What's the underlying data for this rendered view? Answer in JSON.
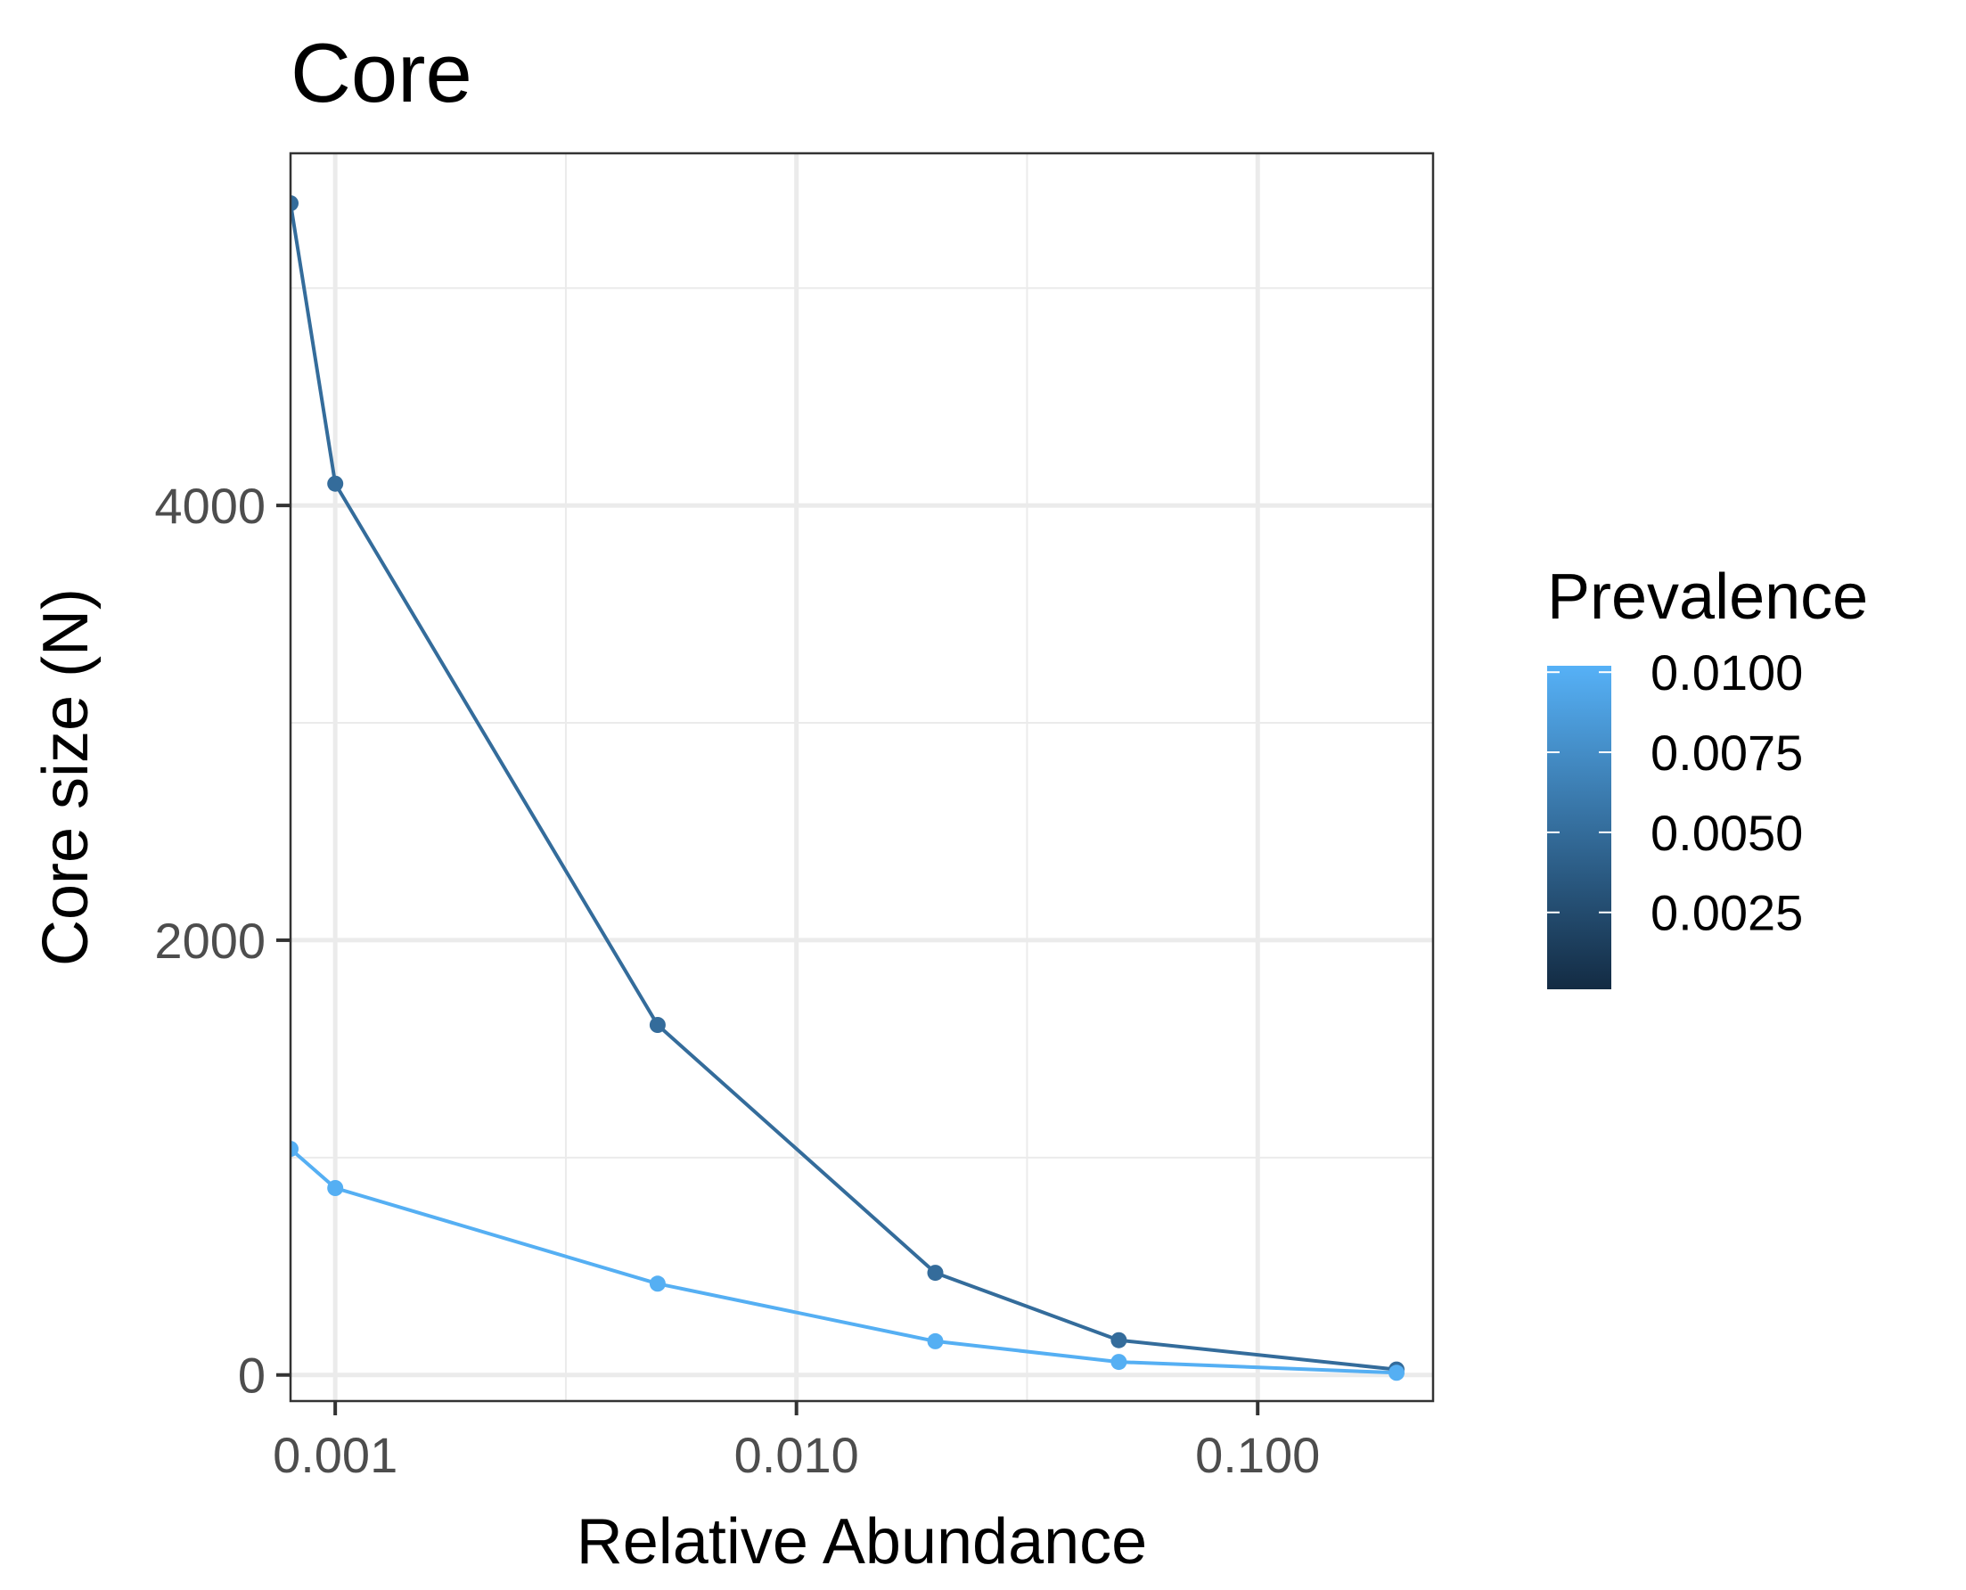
{
  "chart_data": {
    "type": "line",
    "title": "Core",
    "xlabel": "Relative Abundance",
    "ylabel": "Core size (N)",
    "x_scale": "log10",
    "xlim": [
      0.0008,
      0.24
    ],
    "ylim": [
      -120,
      5620
    ],
    "x_ticks": [
      0.001,
      0.01,
      0.1
    ],
    "x_tick_labels": [
      "0.001",
      "0.010",
      "0.100"
    ],
    "y_ticks": [
      0,
      2000,
      4000
    ],
    "y_tick_labels": [
      "0",
      "2000",
      "4000"
    ],
    "grid": true,
    "legend": {
      "title": "Prevalence",
      "position": "right",
      "type": "colorbar",
      "range": [
        0.0001,
        0.0102
      ],
      "breaks": [
        0.01,
        0.0075,
        0.005,
        0.0025
      ],
      "labels": [
        "0.0100",
        "0.0075",
        "0.0050",
        "0.0025"
      ],
      "color_low": "#132B43",
      "color_high": "#56B1F7"
    },
    "series": [
      {
        "prevalence": 0.0055,
        "color": "#346C9B",
        "x": [
          0.0008,
          0.001,
          0.005,
          0.02,
          0.05,
          0.2
        ],
        "y": [
          5390,
          4100,
          1610,
          470,
          160,
          25
        ]
      },
      {
        "prevalence": 0.0101,
        "color": "#55AFF3",
        "x": [
          0.0008,
          0.001,
          0.005,
          0.02,
          0.05,
          0.2
        ],
        "y": [
          1040,
          860,
          420,
          155,
          60,
          10
        ]
      }
    ]
  }
}
